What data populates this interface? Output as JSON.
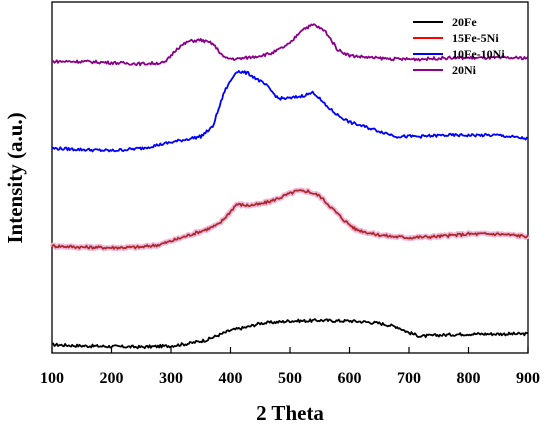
{
  "chart_data": {
    "type": "line",
    "title": "",
    "xlabel": "2 Theta",
    "ylabel": "Intensity (a.u.)",
    "xlim": [
      100,
      900
    ],
    "x_ticks": [
      100,
      200,
      300,
      400,
      500,
      600,
      700,
      800,
      900
    ],
    "y_ticks_visible": false,
    "grid": false,
    "legend_position": "top-right",
    "series": [
      {
        "name": "20Fe",
        "color": "#000000",
        "x": [
          100,
          150,
          200,
          250,
          300,
          330,
          360,
          380,
          400,
          430,
          450,
          480,
          500,
          530,
          550,
          580,
          600,
          630,
          650,
          680,
          700,
          720,
          750,
          800,
          850,
          900
        ],
        "y": [
          0.07,
          0.06,
          0.055,
          0.05,
          0.06,
          0.08,
          0.11,
          0.15,
          0.19,
          0.22,
          0.25,
          0.26,
          0.27,
          0.27,
          0.275,
          0.27,
          0.27,
          0.26,
          0.25,
          0.22,
          0.17,
          0.14,
          0.15,
          0.16,
          0.16,
          0.16
        ]
      },
      {
        "name": "15Fe-5Ni",
        "color": "#ff0000",
        "x": [
          100,
          150,
          200,
          250,
          280,
          300,
          330,
          360,
          380,
          395,
          410,
          430,
          450,
          470,
          490,
          510,
          530,
          550,
          570,
          590,
          610,
          640,
          670,
          700,
          750,
          800,
          850,
          900
        ],
        "y": [
          0.9,
          0.89,
          0.885,
          0.89,
          0.91,
          0.94,
          0.99,
          1.04,
          1.08,
          1.16,
          1.25,
          1.24,
          1.25,
          1.28,
          1.32,
          1.36,
          1.36,
          1.32,
          1.22,
          1.12,
          1.04,
          1.0,
          0.98,
          0.97,
          0.98,
          1.0,
          1.0,
          0.98
        ]
      },
      {
        "name": "10Fe-10Ni",
        "color": "#0000ff",
        "x": [
          100,
          150,
          200,
          250,
          290,
          330,
          350,
          370,
          390,
          410,
          430,
          460,
          480,
          500,
          520,
          540,
          560,
          580,
          600,
          640,
          680,
          720,
          760,
          800,
          850,
          900
        ],
        "y": [
          1.72,
          1.71,
          1.7,
          1.72,
          1.76,
          1.8,
          1.82,
          1.9,
          2.2,
          2.37,
          2.35,
          2.25,
          2.14,
          2.14,
          2.16,
          2.19,
          2.08,
          2.0,
          1.94,
          1.88,
          1.82,
          1.82,
          1.83,
          1.83,
          1.83,
          1.8
        ]
      },
      {
        "name": "20Ni",
        "color": "#8b008b",
        "x": [
          100,
          150,
          200,
          250,
          290,
          310,
          330,
          350,
          370,
          390,
          410,
          440,
          470,
          500,
          520,
          540,
          560,
          580,
          600,
          640,
          680,
          720,
          760,
          800,
          850,
          900
        ],
        "y": [
          2.45,
          2.45,
          2.44,
          2.43,
          2.44,
          2.56,
          2.62,
          2.63,
          2.6,
          2.48,
          2.47,
          2.49,
          2.52,
          2.6,
          2.72,
          2.76,
          2.7,
          2.55,
          2.5,
          2.48,
          2.47,
          2.47,
          2.48,
          2.48,
          2.48,
          2.48
        ]
      }
    ]
  }
}
